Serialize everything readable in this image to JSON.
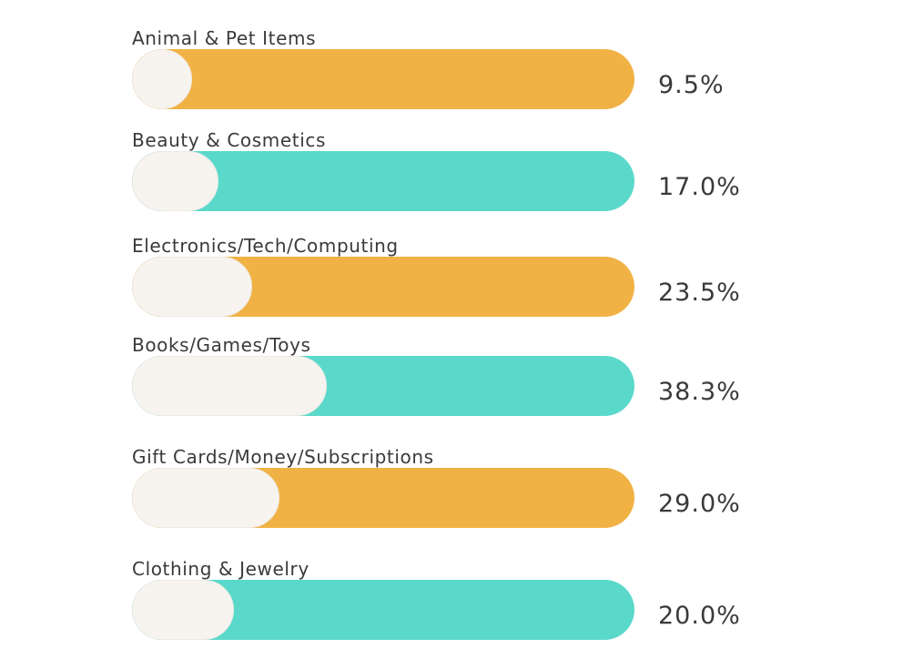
{
  "chart_data": {
    "type": "bar",
    "orientation": "horizontal",
    "categories": [
      "Animal & Pet Items",
      "Beauty & Cosmetics",
      "Electronics/Tech/Computing",
      "Books/Games/Toys",
      "Gift Cards/Money/Subscriptions",
      "Clothing & Jewelry"
    ],
    "values": [
      9.5,
      17.0,
      23.5,
      38.3,
      29.0,
      20.0
    ],
    "value_labels": [
      "9.5%",
      "17.0%",
      "23.5%",
      "38.3%",
      "29.0%",
      "20.0%"
    ],
    "xlim": [
      0,
      100
    ],
    "bar_colors": [
      "#f1b245",
      "#5ad9cb",
      "#f1b245",
      "#5ad9cb",
      "#f1b245",
      "#5ad9cb"
    ],
    "fill_color": "#f7f4f0",
    "grid": false,
    "legend": "none"
  }
}
